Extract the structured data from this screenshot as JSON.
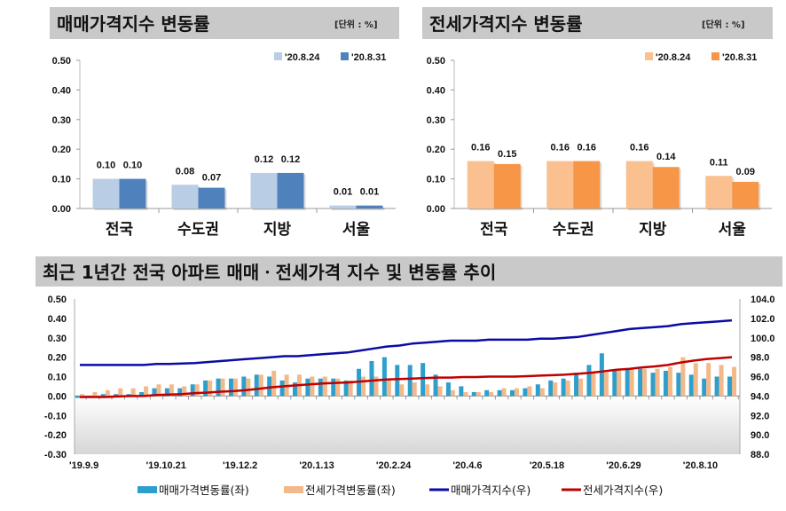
{
  "chart_data": [
    {
      "type": "bar",
      "title": "매매가격지수 변동률",
      "unit": "[단위 : %]",
      "categories": [
        "전국",
        "수도권",
        "지방",
        "서울"
      ],
      "series": [
        {
          "name": "'20.8.24",
          "values": [
            0.1,
            0.08,
            0.12,
            0.01
          ],
          "color": "#b9cde5"
        },
        {
          "name": "'20.8.31",
          "values": [
            0.1,
            0.07,
            0.12,
            0.01
          ],
          "color": "#4f81bd"
        }
      ],
      "ylim": [
        0,
        0.5
      ],
      "yticks": [
        "0.00",
        "0.10",
        "0.20",
        "0.30",
        "0.40",
        "0.50"
      ],
      "legend": "top-right",
      "grid": false
    },
    {
      "type": "bar",
      "title": "전세가격지수 변동률",
      "unit": "[단위 : %]",
      "categories": [
        "전국",
        "수도권",
        "지방",
        "서울"
      ],
      "series": [
        {
          "name": "'20.8.24",
          "values": [
            0.16,
            0.16,
            0.16,
            0.11
          ],
          "color": "#fbc08f"
        },
        {
          "name": "'20.8.31",
          "values": [
            0.15,
            0.16,
            0.14,
            0.09
          ],
          "color": "#f79646"
        }
      ],
      "ylim": [
        0,
        0.5
      ],
      "yticks": [
        "0.00",
        "0.10",
        "0.20",
        "0.30",
        "0.40",
        "0.50"
      ],
      "legend": "top-right",
      "grid": false
    },
    {
      "type": "bar+line",
      "title": "최근 1년간 전국 아파트 매매ㆍ전세가격 지수 및 변동률 추이",
      "x_tick_labels": [
        "'19.9.9",
        "'19.10.21",
        "'19.12.2",
        "'20.1.13",
        "'20.2.24",
        "'20.4.6",
        "'20.5.18",
        "'20.6.29",
        "'20.8.10"
      ],
      "ylim_left": [
        -0.3,
        0.5
      ],
      "yticks_left": [
        "-0.30",
        "-0.20",
        "-0.10",
        "0.00",
        "0.10",
        "0.20",
        "0.30",
        "0.40",
        "0.50"
      ],
      "ylim_right": [
        88.0,
        104.0
      ],
      "yticks_right": [
        "88.0",
        "90.0",
        "92.0",
        "94.0",
        "96.0",
        "98.0",
        "100.0",
        "102.0",
        "104.0"
      ],
      "legend": "bottom",
      "series": [
        {
          "name": "매매가격변동률(좌)",
          "axis": "left",
          "kind": "bar",
          "color": "#2e9fcc",
          "values": [
            -0.01,
            0.0,
            0.01,
            0.01,
            0.01,
            0.02,
            0.04,
            0.04,
            0.04,
            0.06,
            0.08,
            0.09,
            0.09,
            0.1,
            0.11,
            0.1,
            0.08,
            0.07,
            0.09,
            0.09,
            0.09,
            0.08,
            0.14,
            0.18,
            0.2,
            0.16,
            0.16,
            0.17,
            0.11,
            0.07,
            0.05,
            0.02,
            0.03,
            0.03,
            0.03,
            0.04,
            0.06,
            0.08,
            0.09,
            0.12,
            0.16,
            0.22,
            0.13,
            0.14,
            0.14,
            0.12,
            0.13,
            0.12,
            0.11,
            0.09,
            0.1,
            0.1
          ]
        },
        {
          "name": "전세가격변동률(좌)",
          "axis": "left",
          "kind": "bar",
          "color": "#f2b98a",
          "values": [
            0.01,
            0.02,
            0.03,
            0.04,
            0.04,
            0.05,
            0.06,
            0.06,
            0.05,
            0.06,
            0.08,
            0.09,
            0.09,
            0.09,
            0.11,
            0.13,
            0.11,
            0.11,
            0.1,
            0.1,
            0.09,
            0.08,
            0.1,
            0.1,
            0.09,
            0.06,
            0.07,
            0.06,
            0.05,
            0.03,
            0.02,
            0.02,
            0.02,
            0.04,
            0.04,
            0.05,
            0.04,
            0.07,
            0.08,
            0.09,
            0.12,
            0.12,
            0.13,
            0.14,
            0.14,
            0.14,
            0.15,
            0.2,
            0.17,
            0.17,
            0.16,
            0.15
          ]
        },
        {
          "name": "매매가격지수(우)",
          "axis": "right",
          "kind": "line",
          "color": "#0b0ba5",
          "values": [
            97.2,
            97.2,
            97.2,
            97.2,
            97.2,
            97.2,
            97.3,
            97.3,
            97.35,
            97.4,
            97.5,
            97.6,
            97.7,
            97.8,
            97.9,
            98.0,
            98.1,
            98.1,
            98.2,
            98.3,
            98.4,
            98.5,
            98.7,
            98.9,
            99.1,
            99.2,
            99.4,
            99.5,
            99.6,
            99.7,
            99.7,
            99.7,
            99.8,
            99.8,
            99.8,
            99.8,
            99.9,
            99.9,
            100.0,
            100.1,
            100.3,
            100.5,
            100.7,
            100.9,
            101.0,
            101.1,
            101.2,
            101.4,
            101.5,
            101.6,
            101.7,
            101.8
          ]
        },
        {
          "name": "전세가격지수(우)",
          "axis": "right",
          "kind": "line",
          "color": "#c00000",
          "values": [
            93.9,
            93.9,
            93.9,
            93.95,
            94.0,
            94.0,
            94.1,
            94.15,
            94.2,
            94.3,
            94.35,
            94.45,
            94.5,
            94.6,
            94.75,
            94.9,
            95.0,
            95.1,
            95.2,
            95.3,
            95.35,
            95.4,
            95.5,
            95.6,
            95.7,
            95.75,
            95.8,
            95.85,
            95.9,
            95.9,
            95.95,
            95.95,
            96.0,
            96.0,
            96.0,
            96.05,
            96.1,
            96.15,
            96.2,
            96.3,
            96.4,
            96.55,
            96.7,
            96.8,
            96.95,
            97.05,
            97.2,
            97.45,
            97.65,
            97.8,
            97.9,
            98.0
          ]
        }
      ]
    }
  ]
}
